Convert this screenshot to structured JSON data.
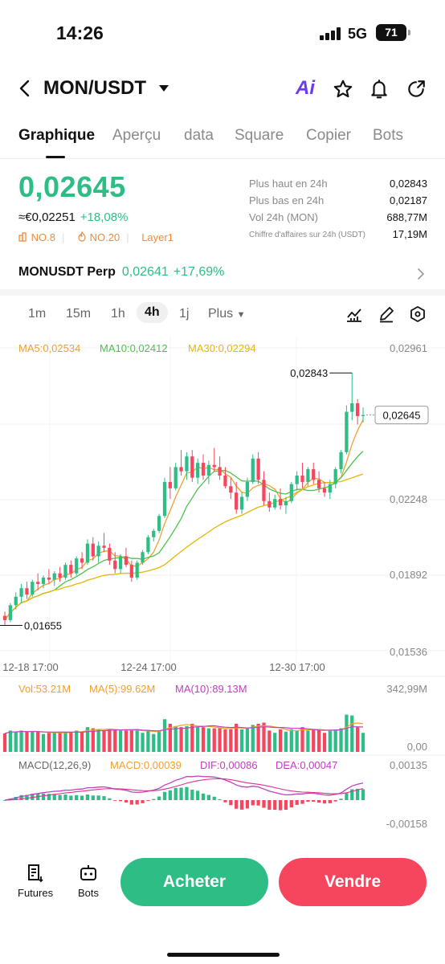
{
  "status": {
    "time": "14:26",
    "network": "5G",
    "battery": "71"
  },
  "header": {
    "pair": "MON/USDT",
    "ai_label": "Ai"
  },
  "tabs": [
    "Graphique",
    "Aperçu",
    "data",
    "Square",
    "Copier",
    "Bots"
  ],
  "ticker": {
    "price": "0,02645",
    "fiat": "≈€0,02251",
    "change": "+18,08%",
    "badges": [
      "NO.8",
      "NO.20",
      "Layer1"
    ],
    "stats": [
      {
        "label": "Plus haut en 24h",
        "value": "0,02843"
      },
      {
        "label": "Plus bas en 24h",
        "value": "0,02187"
      },
      {
        "label": "Vol 24h (MON)",
        "value": "688,77M"
      },
      {
        "label": "Chiffre d'affaires sur 24h (USDT)",
        "value": "17,19M"
      }
    ]
  },
  "perp": {
    "name": "MONUSDT Perp",
    "price": "0,02641",
    "change": "+17,69%"
  },
  "intervals": {
    "items": [
      "1m",
      "15m",
      "1h",
      "4h",
      "1j"
    ],
    "active": "4h",
    "more": "Plus"
  },
  "chart_data": {
    "type": "candlestick",
    "ma_legend": [
      {
        "label": "MA5:0,02534",
        "color": "#f0a030"
      },
      {
        "label": "MA10:0,02412",
        "color": "#4cc24c"
      },
      {
        "label": "MA30:0,02294",
        "color": "#e6b800"
      }
    ],
    "price_axis": [
      "0,02961",
      "0,02248",
      "0,01892",
      "0,01536"
    ],
    "ylim": [
      0.01536,
      0.02961
    ],
    "high_marker": "0,02843",
    "low_marker": "0,01655",
    "last_price_label": "0,02645",
    "time_axis": [
      "12-18 17:00",
      "12-24 17:00",
      "12-30 17:00"
    ],
    "candles": [
      [
        0.017,
        0.0172,
        0.01655,
        0.0168
      ],
      [
        0.0168,
        0.0176,
        0.0167,
        0.0175
      ],
      [
        0.0175,
        0.0181,
        0.0173,
        0.0179
      ],
      [
        0.0179,
        0.0185,
        0.0176,
        0.0183
      ],
      [
        0.0183,
        0.0186,
        0.0178,
        0.018
      ],
      [
        0.018,
        0.0187,
        0.0179,
        0.0186
      ],
      [
        0.0186,
        0.019,
        0.0182,
        0.0185
      ],
      [
        0.0185,
        0.0189,
        0.0183,
        0.0188
      ],
      [
        0.0188,
        0.0192,
        0.0185,
        0.0187
      ],
      [
        0.0187,
        0.0191,
        0.0184,
        0.019
      ],
      [
        0.019,
        0.0193,
        0.0186,
        0.0188
      ],
      [
        0.0188,
        0.0195,
        0.0187,
        0.0194
      ],
      [
        0.0194,
        0.0196,
        0.0188,
        0.019
      ],
      [
        0.019,
        0.0198,
        0.0189,
        0.0197
      ],
      [
        0.0197,
        0.02,
        0.0192,
        0.0195
      ],
      [
        0.0195,
        0.0206,
        0.0194,
        0.0204
      ],
      [
        0.0204,
        0.0207,
        0.0196,
        0.0198
      ],
      [
        0.0198,
        0.0205,
        0.0195,
        0.0203
      ],
      [
        0.0203,
        0.0209,
        0.02,
        0.0202
      ],
      [
        0.0202,
        0.0204,
        0.0194,
        0.0196
      ],
      [
        0.0196,
        0.02,
        0.019,
        0.0192
      ],
      [
        0.0192,
        0.0199,
        0.019,
        0.0198
      ],
      [
        0.0198,
        0.0202,
        0.0193,
        0.0194
      ],
      [
        0.0194,
        0.0196,
        0.0186,
        0.0188
      ],
      [
        0.0188,
        0.0196,
        0.0187,
        0.0195
      ],
      [
        0.0195,
        0.0201,
        0.0194,
        0.02
      ],
      [
        0.02,
        0.0208,
        0.0199,
        0.0207
      ],
      [
        0.0207,
        0.0211,
        0.0205,
        0.021
      ],
      [
        0.021,
        0.0218,
        0.0209,
        0.0217
      ],
      [
        0.0217,
        0.0235,
        0.0216,
        0.0233
      ],
      [
        0.0233,
        0.024,
        0.0225,
        0.023
      ],
      [
        0.023,
        0.0242,
        0.0229,
        0.024
      ],
      [
        0.024,
        0.0248,
        0.0236,
        0.0238
      ],
      [
        0.0238,
        0.0247,
        0.0234,
        0.0245
      ],
      [
        0.0245,
        0.0248,
        0.0233,
        0.0235
      ],
      [
        0.0235,
        0.0244,
        0.0232,
        0.0242
      ],
      [
        0.0242,
        0.0246,
        0.0234,
        0.0236
      ],
      [
        0.0236,
        0.0243,
        0.0232,
        0.0241
      ],
      [
        0.0241,
        0.0249,
        0.0238,
        0.024
      ],
      [
        0.024,
        0.0245,
        0.0234,
        0.0236
      ],
      [
        0.0236,
        0.024,
        0.023,
        0.0231
      ],
      [
        0.0231,
        0.0235,
        0.0225,
        0.0228
      ],
      [
        0.0228,
        0.0233,
        0.0218,
        0.022
      ],
      [
        0.022,
        0.0228,
        0.0218,
        0.0226
      ],
      [
        0.0226,
        0.0235,
        0.0224,
        0.0233
      ],
      [
        0.0233,
        0.0246,
        0.0232,
        0.0244
      ],
      [
        0.0244,
        0.0247,
        0.0232,
        0.0234
      ],
      [
        0.0234,
        0.0238,
        0.0222,
        0.0224
      ],
      [
        0.0224,
        0.0228,
        0.0219,
        0.0221
      ],
      [
        0.0221,
        0.0227,
        0.022,
        0.0225
      ],
      [
        0.0225,
        0.023,
        0.022,
        0.0222
      ],
      [
        0.0222,
        0.0226,
        0.0218,
        0.0224
      ],
      [
        0.0224,
        0.0233,
        0.0223,
        0.0232
      ],
      [
        0.0232,
        0.0238,
        0.0229,
        0.0236
      ],
      [
        0.0236,
        0.0242,
        0.023,
        0.0233
      ],
      [
        0.0233,
        0.024,
        0.0231,
        0.0239
      ],
      [
        0.0239,
        0.0242,
        0.0232,
        0.0234
      ],
      [
        0.0234,
        0.0238,
        0.0228,
        0.023
      ],
      [
        0.023,
        0.0233,
        0.0226,
        0.0228
      ],
      [
        0.0228,
        0.0234,
        0.0225,
        0.0232
      ],
      [
        0.0232,
        0.024,
        0.023,
        0.0239
      ],
      [
        0.0239,
        0.0248,
        0.0237,
        0.0247
      ],
      [
        0.0247,
        0.0269,
        0.0246,
        0.0266
      ],
      [
        0.0266,
        0.02843,
        0.0262,
        0.027
      ],
      [
        0.027,
        0.0272,
        0.026,
        0.0264
      ],
      [
        0.0264,
        0.0268,
        0.0261,
        0.02645
      ]
    ],
    "volume_legend": {
      "vol": "Vol:53.21M",
      "ma5": "MA(5):99.62M",
      "ma10": "MA(10):89.13M"
    },
    "volume_axis": [
      "342,99M",
      "0,00"
    ],
    "volume_max": 342.99,
    "macd_legend": {
      "title": "MACD(12,26,9)",
      "macd": "MACD:0,00039",
      "dif": "DIF:0,00086",
      "dea": "DEA:0,00047"
    },
    "macd_axis": [
      "0,00135",
      "-0,00158"
    ]
  },
  "bottom": {
    "futures": "Futures",
    "bots": "Bots",
    "buy": "Acheter",
    "sell": "Vendre"
  },
  "colors": {
    "up": "#2ebd85",
    "down": "#f6465d",
    "accent": "#6b3cf0"
  }
}
